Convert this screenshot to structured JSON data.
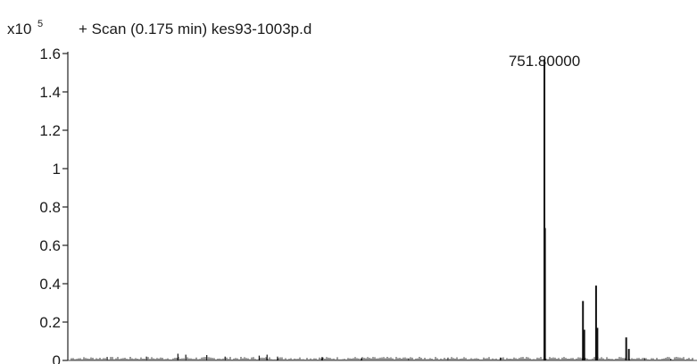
{
  "chart_data": {
    "type": "bar",
    "title": "+ Scan (0.175 min) kes93-1003p.d",
    "y_multiplier_label": "x10",
    "y_multiplier_exponent": "5",
    "ylim": [
      0,
      1.6
    ],
    "y_ticks": [
      "0",
      "0.2",
      "0.4",
      "0.6",
      "0.8",
      "1",
      "1.2",
      "1.4",
      "1.6"
    ],
    "xlabel": "",
    "ylabel": "",
    "grid": false,
    "annotations": [
      {
        "text": "751.80000",
        "target_peak": "751.8"
      }
    ],
    "series": [
      {
        "values": [
          {
            "x": 751.8,
            "y": 1.57
          },
          {
            "x": 752.0,
            "y": 0.69
          },
          {
            "x": 766.5,
            "y": 0.31
          },
          {
            "x": 767.0,
            "y": 0.16
          },
          {
            "x": 771.5,
            "y": 0.39
          },
          {
            "x": 772.0,
            "y": 0.17
          },
          {
            "x": 783.0,
            "y": 0.12
          },
          {
            "x": 784.0,
            "y": 0.06
          },
          {
            "x": 585.0,
            "y": 0.018
          },
          {
            "x": 600.0,
            "y": 0.02
          },
          {
            "x": 612.0,
            "y": 0.035
          },
          {
            "x": 615.0,
            "y": 0.03
          },
          {
            "x": 623.0,
            "y": 0.028
          },
          {
            "x": 630.0,
            "y": 0.02
          },
          {
            "x": 643.0,
            "y": 0.025
          },
          {
            "x": 646.0,
            "y": 0.03
          },
          {
            "x": 650.0,
            "y": 0.02
          },
          {
            "x": 667.0,
            "y": 0.018
          },
          {
            "x": 682.0,
            "y": 0.012
          },
          {
            "x": 700.0,
            "y": 0.01
          },
          {
            "x": 715.0,
            "y": 0.012
          },
          {
            "x": 735.0,
            "y": 0.015
          },
          {
            "x": 790.0,
            "y": 0.01
          },
          {
            "x": 800.0,
            "y": 0.008
          }
        ]
      }
    ]
  }
}
